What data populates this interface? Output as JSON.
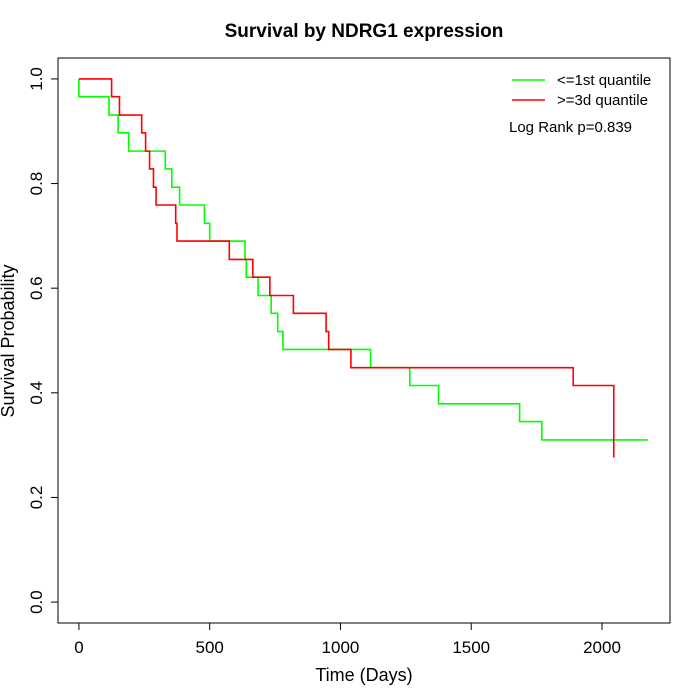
{
  "chart_data": {
    "type": "line",
    "title": "Survival by NDRG1 expression",
    "xlabel": "Time (Days)",
    "ylabel": "Survival Probability",
    "xlim": [
      -80,
      2260
    ],
    "ylim": [
      -0.04,
      1.04
    ],
    "xticks": [
      0,
      500,
      1000,
      1500,
      2000
    ],
    "yticks": [
      0.0,
      0.2,
      0.4,
      0.6,
      0.8,
      1.0
    ],
    "xtick_labels": [
      "0",
      "500",
      "1000",
      "1500",
      "2000"
    ],
    "ytick_labels": [
      "0.0",
      "0.2",
      "0.4",
      "0.6",
      "0.8",
      "1.0"
    ],
    "grid": false,
    "legend_position": "top-right",
    "annotation": "Log Rank p=0.839",
    "series": [
      {
        "name": "<=1st quantile",
        "color": "#00ff00",
        "step": true,
        "x": [
          0,
          0,
          115,
          150,
          190,
          330,
          355,
          385,
          480,
          500,
          635,
          640,
          685,
          735,
          760,
          780,
          1115,
          1265,
          1375,
          1685,
          1770,
          2175
        ],
        "y": [
          1.0,
          0.966,
          0.931,
          0.897,
          0.862,
          0.828,
          0.793,
          0.759,
          0.724,
          0.69,
          0.655,
          0.621,
          0.586,
          0.552,
          0.517,
          0.483,
          0.448,
          0.414,
          0.379,
          0.345,
          0.31,
          0.31
        ]
      },
      {
        "name": ">=3d quantile",
        "color": "#ff0000",
        "step": true,
        "x": [
          0,
          125,
          155,
          240,
          255,
          270,
          285,
          295,
          370,
          375,
          575,
          665,
          730,
          820,
          945,
          955,
          1040,
          1890,
          2045
        ],
        "y": [
          1.0,
          0.966,
          0.931,
          0.897,
          0.862,
          0.828,
          0.793,
          0.759,
          0.724,
          0.69,
          0.655,
          0.621,
          0.586,
          0.552,
          0.517,
          0.483,
          0.448,
          0.414,
          0.276
        ]
      }
    ]
  }
}
